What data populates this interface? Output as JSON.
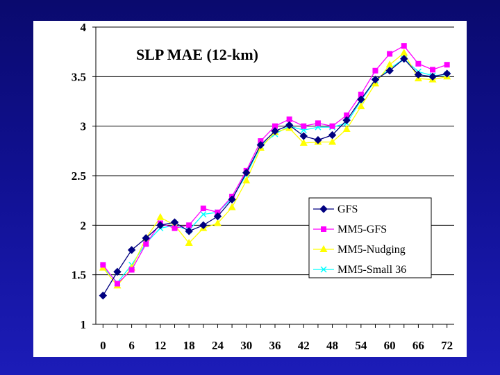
{
  "chart_data": {
    "type": "line",
    "title": "SLP MAE (12-km)",
    "xlabel": "",
    "ylabel": "",
    "x": [
      0,
      3,
      6,
      9,
      12,
      15,
      18,
      21,
      24,
      27,
      30,
      33,
      36,
      39,
      42,
      45,
      48,
      51,
      54,
      57,
      60,
      63,
      66,
      69,
      72
    ],
    "x_tick_labels": [
      "0",
      "6",
      "12",
      "18",
      "24",
      "30",
      "36",
      "42",
      "48",
      "54",
      "60",
      "66",
      "72"
    ],
    "x_ticks": [
      0,
      6,
      12,
      18,
      24,
      30,
      36,
      42,
      48,
      54,
      60,
      66,
      72
    ],
    "y_tick_labels": [
      "1",
      "1.5",
      "2",
      "2.5",
      "3",
      "3.5",
      "4"
    ],
    "y_ticks": [
      1,
      1.5,
      2,
      2.5,
      3,
      3.5,
      4
    ],
    "xlim": [
      -1.5,
      73.5
    ],
    "ylim": [
      1,
      4
    ],
    "grid": "horizontal",
    "legend_position": "right-center",
    "series": [
      {
        "name": "GFS",
        "color": "#000080",
        "marker": "diamond",
        "values": [
          1.29,
          1.53,
          1.75,
          1.87,
          2.0,
          2.03,
          1.94,
          2.0,
          2.09,
          2.26,
          2.53,
          2.81,
          2.95,
          3.01,
          2.9,
          2.86,
          2.91,
          3.06,
          3.27,
          3.47,
          3.56,
          3.68,
          3.52,
          3.5,
          3.53
        ]
      },
      {
        "name": "MM5-GFS",
        "color": "#ff00ff",
        "marker": "square",
        "values": [
          1.6,
          1.41,
          1.55,
          1.81,
          2.02,
          1.97,
          2.0,
          2.17,
          2.13,
          2.29,
          2.55,
          2.85,
          3.0,
          3.07,
          3.0,
          3.03,
          3.0,
          3.11,
          3.32,
          3.56,
          3.73,
          3.81,
          3.63,
          3.57,
          3.62
        ]
      },
      {
        "name": "MM5-Nudging",
        "color": "#ffff00",
        "marker": "triangle",
        "values": [
          1.57,
          1.39,
          1.57,
          1.87,
          2.08,
          2.0,
          1.82,
          1.97,
          2.02,
          2.18,
          2.45,
          2.78,
          2.94,
          2.98,
          2.83,
          2.84,
          2.84,
          2.97,
          3.2,
          3.43,
          3.62,
          3.74,
          3.48,
          3.47,
          3.5
        ]
      },
      {
        "name": "MM5-Small 36",
        "color": "#00ffff",
        "marker": "x",
        "values": [
          1.58,
          1.42,
          1.6,
          1.82,
          1.97,
          2.0,
          1.95,
          2.11,
          2.13,
          2.27,
          2.51,
          2.8,
          2.92,
          3.0,
          2.96,
          2.99,
          2.99,
          3.03,
          3.26,
          3.46,
          3.58,
          3.68,
          3.55,
          3.51,
          3.52
        ]
      }
    ]
  }
}
